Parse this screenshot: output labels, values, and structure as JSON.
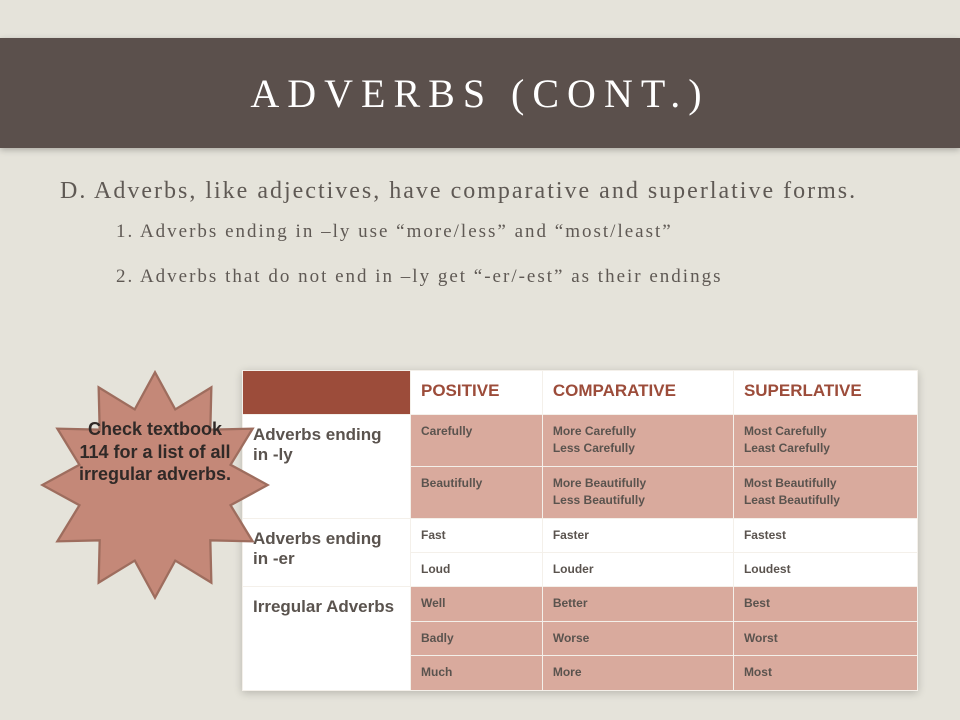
{
  "title": "ADVERBS (CONT.)",
  "section_d": "D. Adverbs, like adjectives, have comparative and superlative forms.",
  "rule1": "1. Adverbs ending in –ly use “more/less” and “most/least”",
  "rule2": "2. Adverbs that do not end in –ly get “-er/-est” as their endings",
  "star_text": "Check textbook 114 for a list of all irregular adverbs.",
  "star_fill": "#c48878",
  "star_stroke": "#9e6d5e",
  "colors": {
    "page_bg": "#e5e3da",
    "header_bg": "#5b504c",
    "accent": "#9c4c3a",
    "shaded_row": "#d9aa9d",
    "text": "#5a534e"
  },
  "table": {
    "columns": [
      "POSITIVE",
      "COMPARATIVE",
      "SUPERLATIVE"
    ],
    "groups": [
      {
        "label": "Adverbs ending in -ly",
        "rows": [
          {
            "shaded": true,
            "positive": [
              "Carefully"
            ],
            "comparative": [
              "More Carefully",
              "Less Carefully"
            ],
            "superlative": [
              "Most Carefully",
              "Least Carefully"
            ]
          },
          {
            "shaded": true,
            "positive": [
              "Beautifully"
            ],
            "comparative": [
              "More Beautifully",
              "Less Beautifully"
            ],
            "superlative": [
              "Most Beautifully",
              "Least Beautifully"
            ]
          }
        ]
      },
      {
        "label": "Adverbs ending in -er",
        "rows": [
          {
            "shaded": false,
            "positive": [
              "Fast"
            ],
            "comparative": [
              "Faster"
            ],
            "superlative": [
              "Fastest"
            ]
          },
          {
            "shaded": false,
            "positive": [
              "Loud"
            ],
            "comparative": [
              "Louder"
            ],
            "superlative": [
              "Loudest"
            ]
          }
        ]
      },
      {
        "label": "Irregular Adverbs",
        "rows": [
          {
            "shaded": true,
            "positive": [
              "Well"
            ],
            "comparative": [
              "Better"
            ],
            "superlative": [
              "Best"
            ]
          },
          {
            "shaded": true,
            "positive": [
              "Badly"
            ],
            "comparative": [
              "Worse"
            ],
            "superlative": [
              "Worst"
            ]
          },
          {
            "shaded": true,
            "positive": [
              "Much"
            ],
            "comparative": [
              "More"
            ],
            "superlative": [
              "Most"
            ]
          }
        ]
      }
    ]
  }
}
